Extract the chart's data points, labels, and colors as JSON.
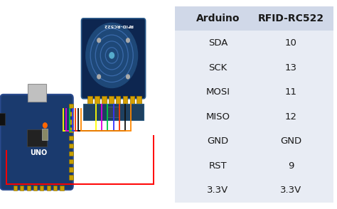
{
  "table_headers": [
    "Arduino",
    "RFID-RC522"
  ],
  "table_rows": [
    [
      "SDA",
      "10"
    ],
    [
      "SCK",
      "13"
    ],
    [
      "MOSI",
      "11"
    ],
    [
      "MISO",
      "12"
    ],
    [
      "GND",
      "GND"
    ],
    [
      "RST",
      "9"
    ],
    [
      "3.3V",
      "3.3V"
    ]
  ],
  "header_bg": "#d0d8e8",
  "row_bg": "#e8ecf4",
  "bg_color": "#ffffff",
  "header_fontsize": 10,
  "row_fontsize": 9.5,
  "wire_colors": [
    "#ffff00",
    "#dd00dd",
    "#00cc44",
    "#3333ff",
    "#ff3300",
    "#111111",
    "#ff8800"
  ],
  "image_bg": "#ffffff",
  "arduino_color": "#1a3a6e",
  "rfid_color": "#0d2650",
  "rfid_board_color": "#1a4060"
}
